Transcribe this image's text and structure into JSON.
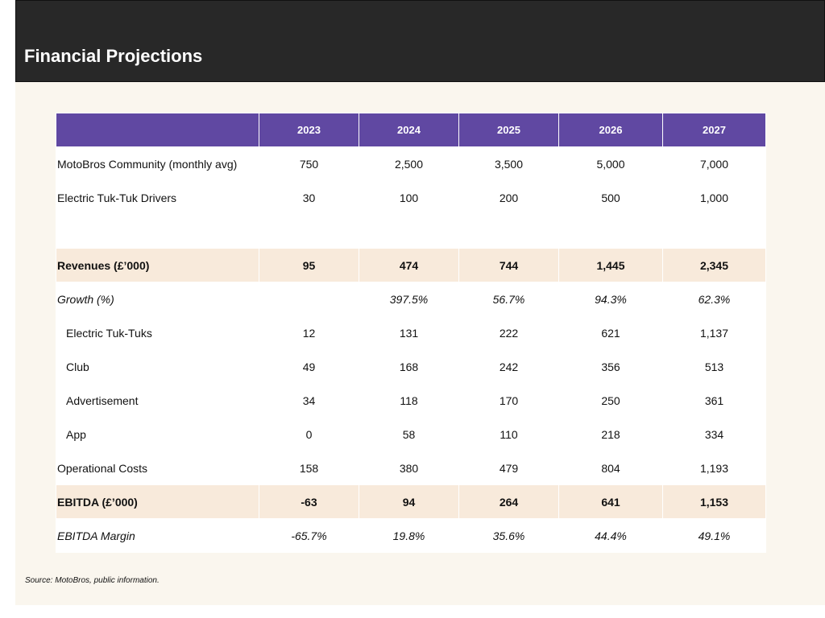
{
  "title": "Financial Projections",
  "table": {
    "years": [
      "2023",
      "2024",
      "2025",
      "2026",
      "2027"
    ],
    "rows": [
      {
        "label": "MotoBros Community (monthly avg)",
        "values": [
          "750",
          "2,500",
          "3,500",
          "5,000",
          "7,000"
        ]
      },
      {
        "label": "Electric Tuk-Tuk Drivers",
        "values": [
          "30",
          "100",
          "200",
          "500",
          "1,000"
        ]
      },
      {
        "label": "",
        "values": [
          "",
          "",
          "",
          "",
          ""
        ]
      },
      {
        "label": "Revenues  (£’000)",
        "values": [
          "95",
          "474",
          "744",
          "1,445",
          "2,345"
        ]
      },
      {
        "label": "Growth (%)",
        "values": [
          "",
          "397.5%",
          "56.7%",
          "94.3%",
          "62.3%"
        ]
      },
      {
        "label": "Electric Tuk-Tuks",
        "values": [
          "12",
          "131",
          "222",
          "621",
          "1,137"
        ]
      },
      {
        "label": "Club",
        "values": [
          "49",
          "168",
          "242",
          "356",
          "513"
        ]
      },
      {
        "label": "Advertisement",
        "values": [
          "34",
          "118",
          "170",
          "250",
          "361"
        ]
      },
      {
        "label": "App",
        "values": [
          "0",
          "58",
          "110",
          "218",
          "334"
        ]
      },
      {
        "label": "Operational Costs",
        "values": [
          "158",
          "380",
          "479",
          "804",
          "1,193"
        ]
      },
      {
        "label": "EBITDA (£’000)",
        "values": [
          "-63",
          "94",
          "264",
          "641",
          "1,153"
        ]
      },
      {
        "label": "EBITDA Margin",
        "values": [
          "-65.7%",
          "19.8%",
          "35.6%",
          "44.4%",
          "49.1%"
        ]
      }
    ]
  },
  "source": "Source: MotoBros, public information.",
  "colors": {
    "header_bar": "#282828",
    "table_header": "#6048a2",
    "highlight_row": "#f8eadb",
    "slide_background": "#faf6ee"
  }
}
